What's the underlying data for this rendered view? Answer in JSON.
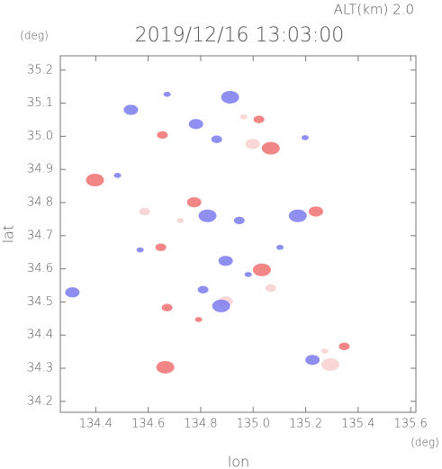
{
  "chart_data": {
    "type": "scatter",
    "title": "2019/12/16 13:03:00",
    "subtitle": "ALT(km) 2.0",
    "x_label": "lon",
    "y_label": "lat",
    "x_unit": "(deg)",
    "y_unit": "(deg)",
    "xlim": [
      134.265,
      135.62
    ],
    "ylim": [
      34.167,
      35.243
    ],
    "xticks": [
      134.4,
      134.6,
      134.8,
      {
        "value": 135,
        "label": "135.0"
      },
      135.2,
      135.4,
      135.6
    ],
    "yticks": [
      34.2,
      34.3,
      34.4,
      34.5,
      34.6,
      34.7,
      34.8,
      34.9,
      {
        "value": 35,
        "label": "35.0"
      },
      35.1,
      35.2
    ],
    "x": [
      134.672,
      134.654,
      134.782,
      134.912,
      134.964,
      134.861,
      134.998,
      135.067,
      135.198,
      135.022,
      134.534,
      134.397,
      134.483,
      134.586,
      134.775,
      134.826,
      134.723,
      134.947,
      135.239,
      135.17,
      134.569,
      134.648,
      134.895,
      135.033,
      135.102,
      134.809,
      134.895,
      134.878,
      134.792,
      134.672,
      134.311,
      134.665,
      135.273,
      135.347,
      135.226,
      135.294,
      134.981,
      135.067
    ],
    "y": [
      35.127,
      35.004,
      35.037,
      35.118,
      35.059,
      34.991,
      34.977,
      34.964,
      34.996,
      35.051,
      35.08,
      34.868,
      34.882,
      34.773,
      34.801,
      34.76,
      34.746,
      34.746,
      34.773,
      34.76,
      34.657,
      34.665,
      34.624,
      34.597,
      34.665,
      34.537,
      34.502,
      34.488,
      34.447,
      34.483,
      34.529,
      34.303,
      34.352,
      34.366,
      34.325,
      34.311,
      34.583,
      34.542
    ],
    "colors": [
      "#7b7bf0",
      "#f07070",
      "#7b7bf0",
      "#7b7bf0",
      "#f8d0d0",
      "#7b7bf0",
      "#f8d0d0",
      "#f07070",
      "#7b7bf0",
      "#f07070",
      "#7b7bf0",
      "#f07070",
      "#7b7bf0",
      "#f8d0d0",
      "#f07070",
      "#7b7bf0",
      "#f8d0d0",
      "#7b7bf0",
      "#f07070",
      "#7b7bf0",
      "#7b7bf0",
      "#f07070",
      "#7b7bf0",
      "#f07070",
      "#7b7bf0",
      "#7b7bf0",
      "#f8d0d0",
      "#7b7bf0",
      "#f07070",
      "#f07070",
      "#7b7bf0",
      "#f07070",
      "#f8d0d0",
      "#f07070",
      "#7b7bf0",
      "#f8d0d0",
      "#7b7bf0",
      "#f8d0d0"
    ]
  }
}
